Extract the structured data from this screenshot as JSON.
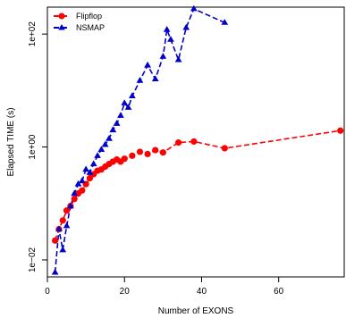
{
  "chart_data": {
    "type": "line",
    "title": "",
    "xlabel": "Number of EXONS",
    "ylabel": "Elapsed TIME (s)",
    "x_ticks": [
      0,
      20,
      40,
      60
    ],
    "x_tick_labels": [
      "0",
      "20",
      "40",
      "60"
    ],
    "xlim": [
      0,
      77
    ],
    "y_scale": "log",
    "y_ticks": [
      0.01,
      1,
      100
    ],
    "y_tick_labels": [
      "1e−02",
      "1e+00",
      "1e+02"
    ],
    "ylim": [
      0.005,
      300
    ],
    "grid": false,
    "legend_position": "top-left",
    "series": [
      {
        "name": "Flipflop",
        "color": "#ff0000",
        "marker": "circle",
        "x": [
          2,
          3,
          4,
          5,
          6,
          7,
          8,
          9,
          10,
          11,
          12,
          13,
          14,
          15,
          16,
          17,
          18,
          19,
          20,
          22,
          24,
          26,
          28,
          30,
          34,
          38,
          46,
          76
        ],
        "y": [
          0.022,
          0.035,
          0.05,
          0.075,
          0.09,
          0.12,
          0.15,
          0.17,
          0.22,
          0.28,
          0.33,
          0.38,
          0.4,
          0.45,
          0.5,
          0.55,
          0.6,
          0.55,
          0.62,
          0.7,
          0.82,
          0.75,
          0.88,
          0.8,
          1.2,
          1.25,
          0.95,
          1.95
        ]
      },
      {
        "name": "NSMAP",
        "color": "#0000cc",
        "marker": "triangle",
        "x": [
          2,
          3,
          4,
          5,
          6,
          7,
          8,
          9,
          10,
          11,
          12,
          13,
          14,
          15,
          16,
          17,
          18,
          19,
          20,
          21,
          22,
          24,
          26,
          28,
          30,
          31,
          32,
          34,
          36,
          38,
          46
        ],
        "y": [
          0.006,
          0.035,
          0.015,
          0.04,
          0.09,
          0.15,
          0.22,
          0.25,
          0.4,
          0.35,
          0.5,
          0.7,
          0.9,
          1.1,
          1.4,
          2.0,
          2.6,
          3.6,
          6.0,
          5.0,
          8.0,
          15,
          28,
          16,
          40,
          120,
          80,
          35,
          130,
          280,
          160
        ]
      }
    ]
  }
}
